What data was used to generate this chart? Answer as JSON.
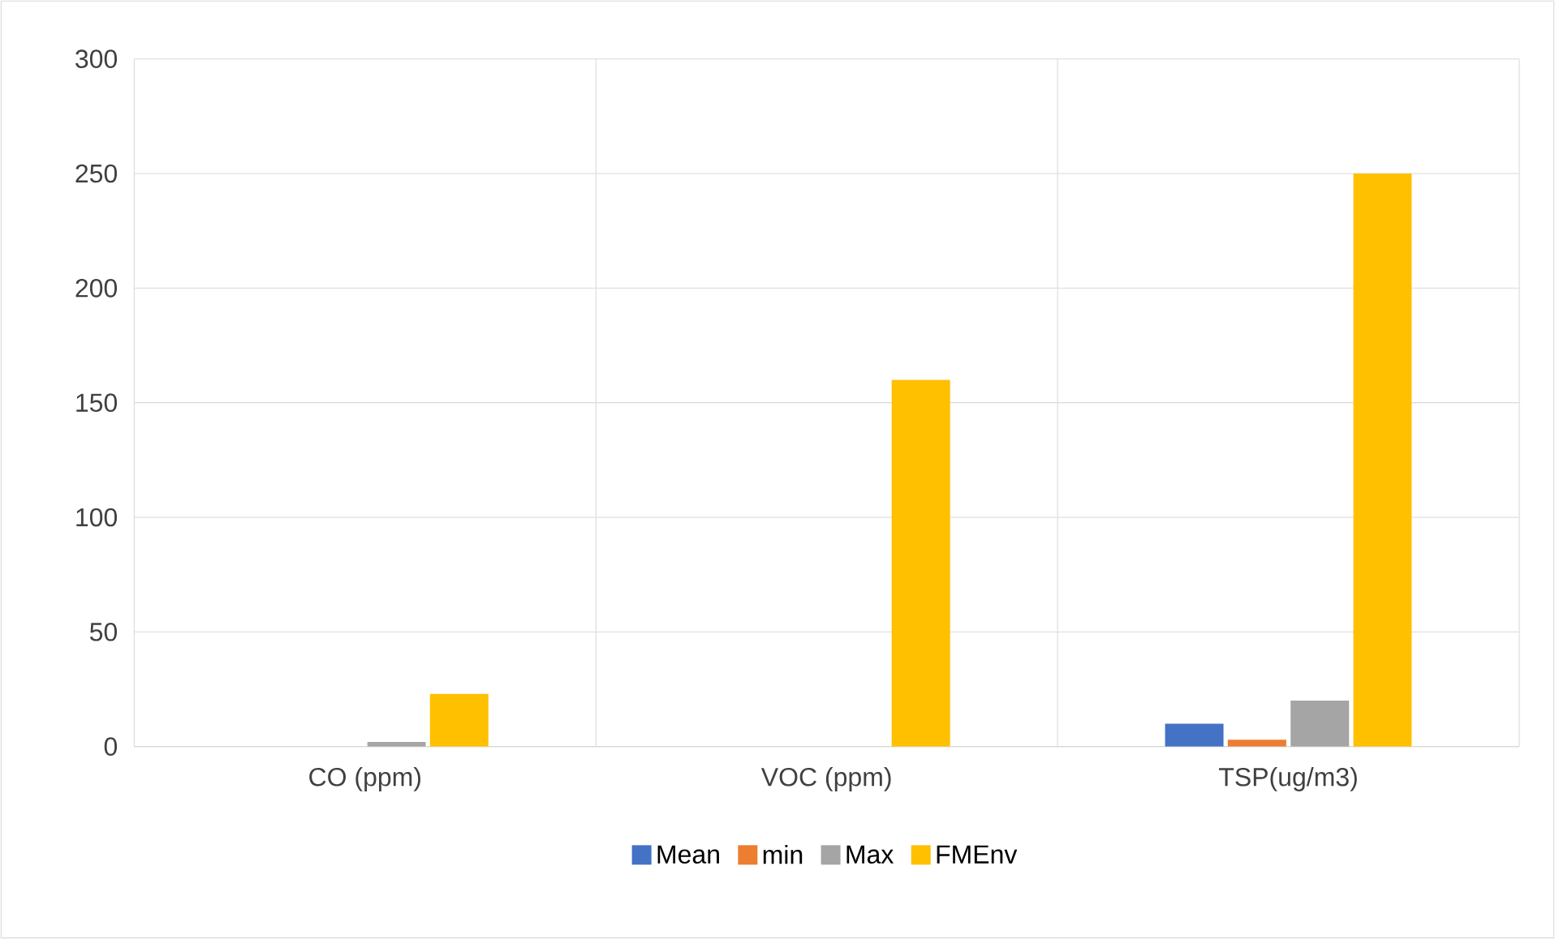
{
  "chart_data": {
    "type": "bar",
    "categories": [
      "CO (ppm)",
      "VOC (ppm)",
      "TSP(ug/m3)"
    ],
    "series": [
      {
        "name": "Mean",
        "color": "#4472c4",
        "values": [
          0,
          0,
          10
        ]
      },
      {
        "name": "min",
        "color": "#ed7d31",
        "values": [
          0,
          0,
          3
        ]
      },
      {
        "name": "Max",
        "color": "#a5a5a5",
        "values": [
          2,
          0,
          20
        ]
      },
      {
        "name": "FMEnv",
        "color": "#ffc000",
        "values": [
          23,
          160,
          250
        ]
      }
    ],
    "ylim": [
      0,
      300
    ],
    "yticks": [
      0,
      50,
      100,
      150,
      200,
      250,
      300
    ],
    "grid": true,
    "legend": "bottom"
  }
}
